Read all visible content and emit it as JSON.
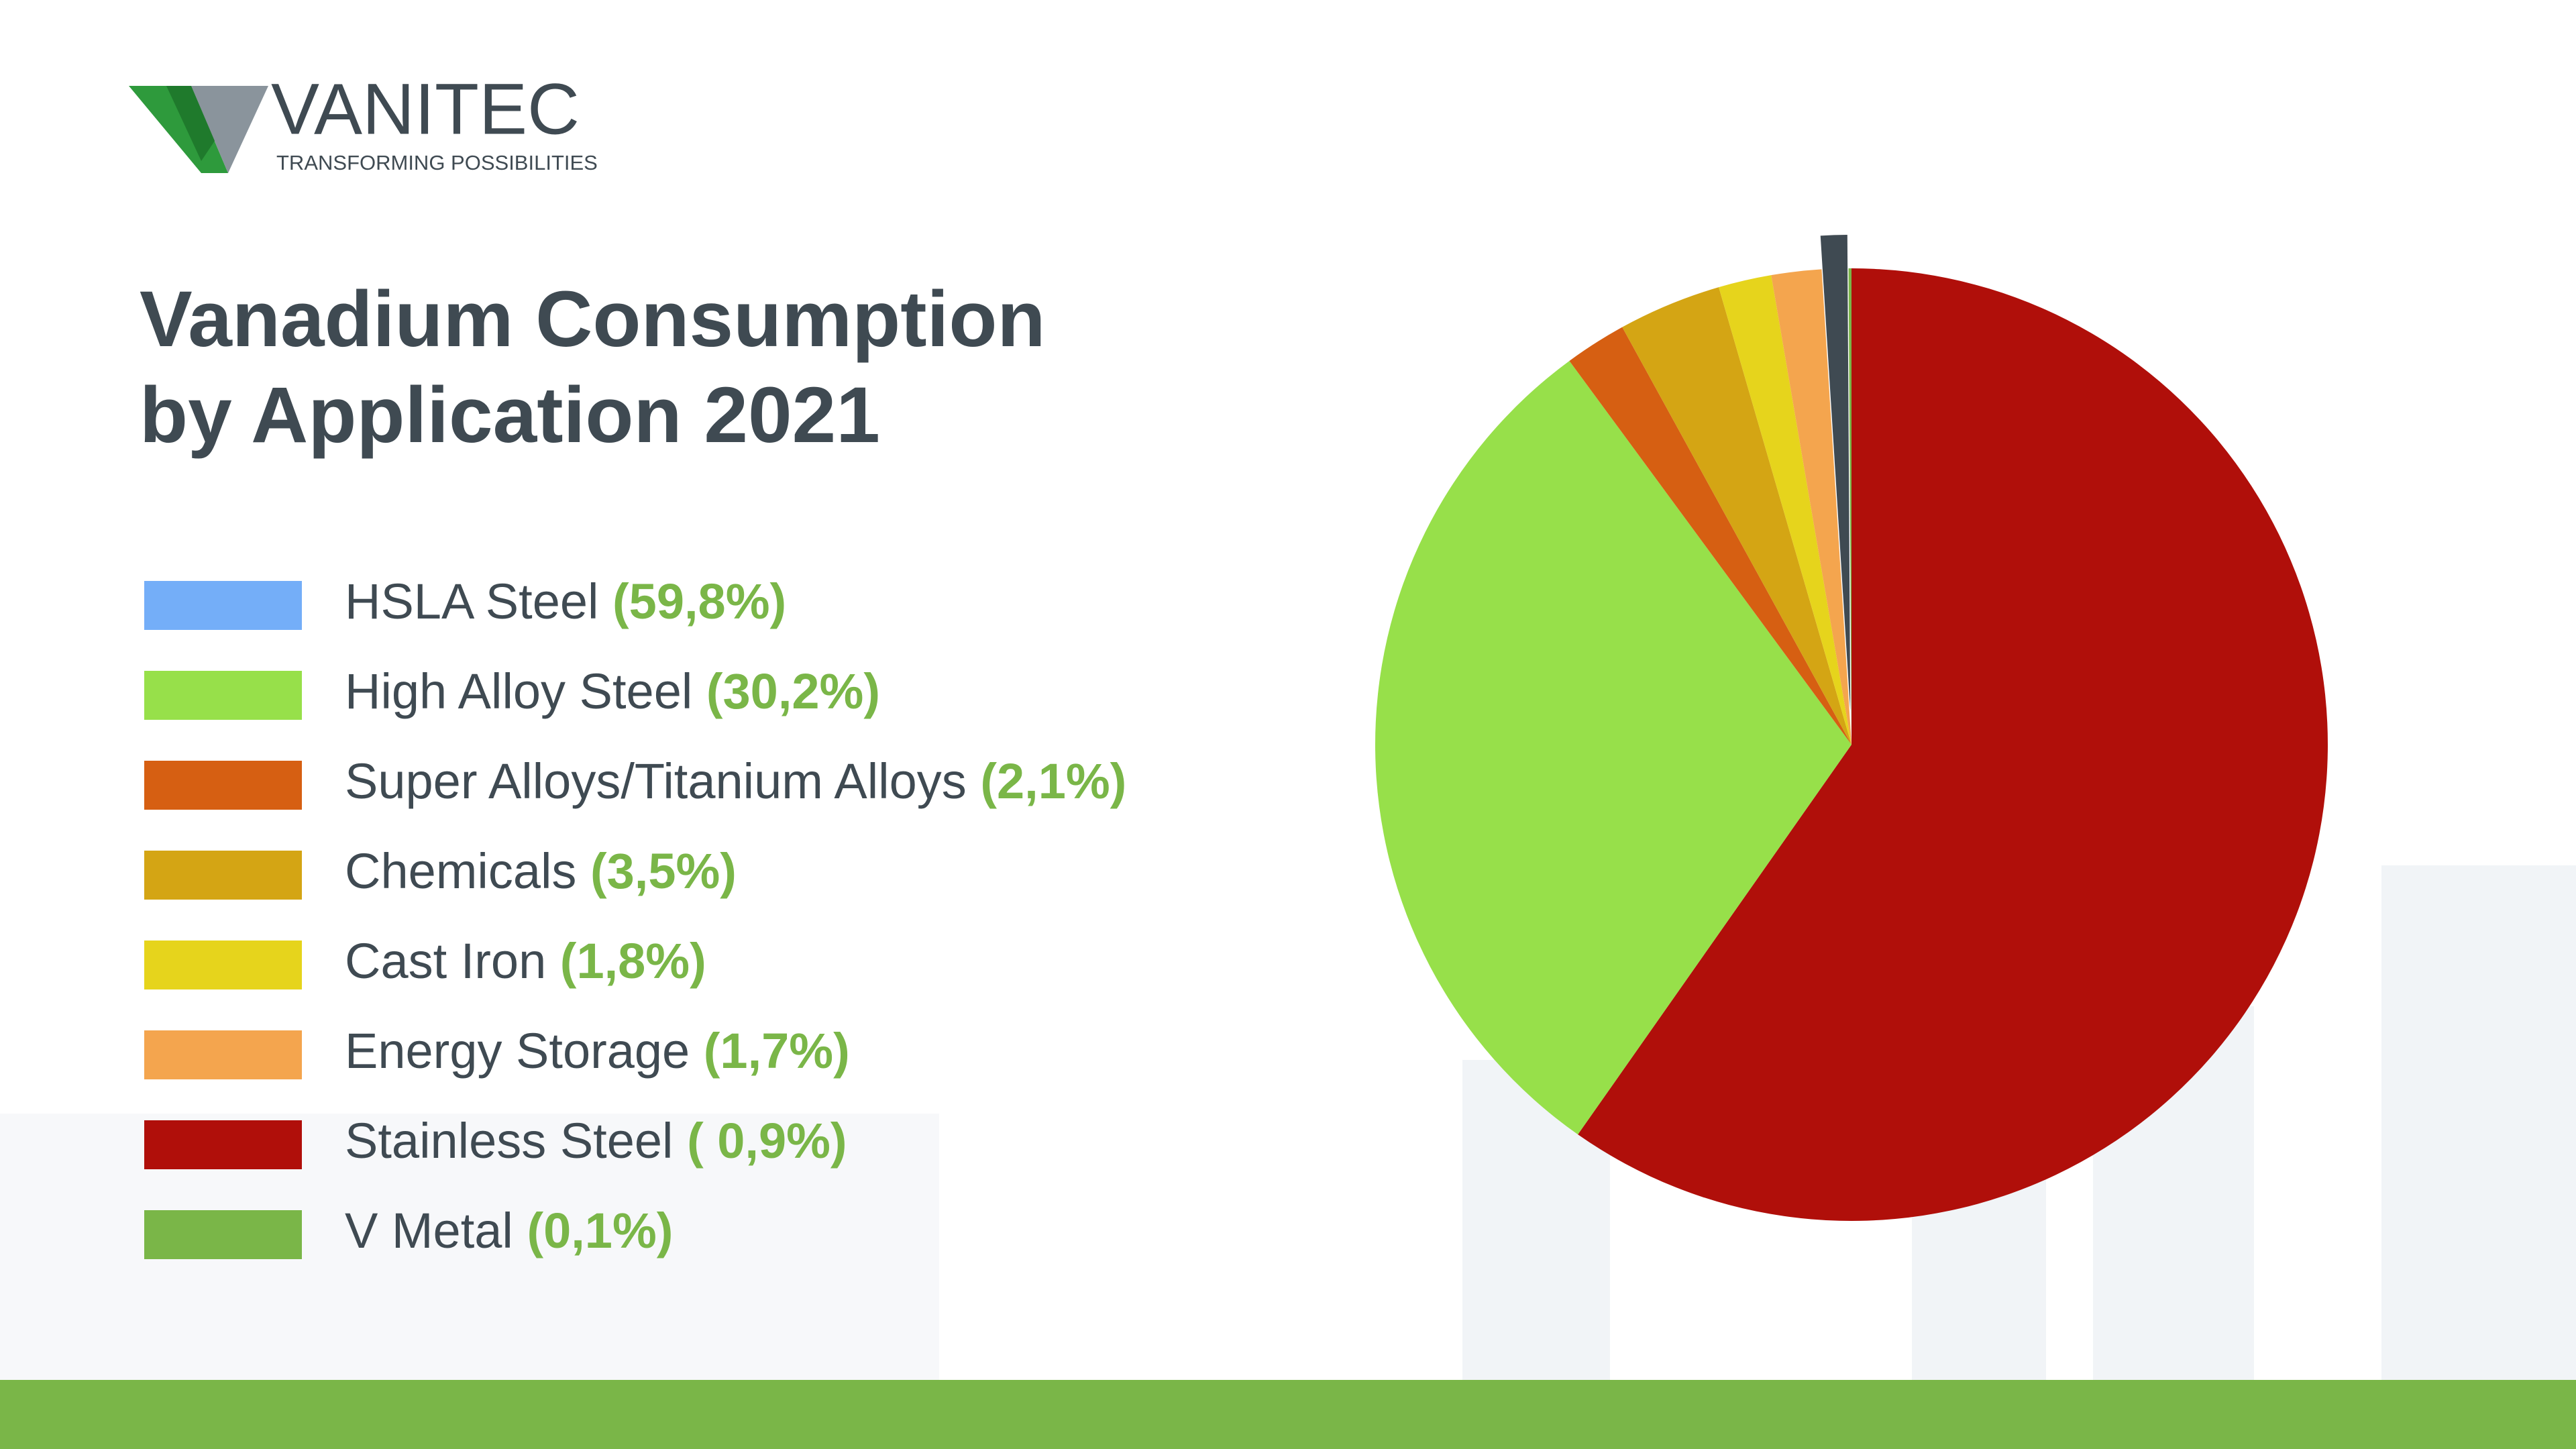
{
  "logo": {
    "name": "VANITEC",
    "tagline": "TRANSFORMING POSSIBILITIES"
  },
  "chart_data": {
    "type": "pie",
    "title": [
      "Vanadium Consumption",
      "by Application 2021"
    ],
    "categories": [
      "HSLA Steel",
      "High Alloy Steel",
      "Super Alloys/Titanium Alloys",
      "Chemicals",
      "Cast Iron",
      "Energy Storage",
      "Stainless Steel",
      "V Metal"
    ],
    "values": [
      59.8,
      30.2,
      2.1,
      3.5,
      1.8,
      1.7,
      0.9,
      0.1
    ],
    "value_labels": [
      "(59,8%)",
      "(30,2%)",
      "(2,1%)",
      "(3,5%)",
      "(1,8%)",
      "(1,7%)",
      "(  0,9%)",
      "(0,1%)"
    ],
    "colors": [
      "#74aef8",
      "#97e04a",
      "#d65f12",
      "#d4a514",
      "#e6d41c",
      "#f4a54e",
      "#b00f0a",
      "#7ab648"
    ],
    "slice_colors": [
      "#b00f0a",
      "#97e04a",
      "#d65f12",
      "#d4a514",
      "#e6d41c",
      "#f4a54e",
      "#3f4a52",
      "#7ab648"
    ],
    "exploded": 6
  }
}
